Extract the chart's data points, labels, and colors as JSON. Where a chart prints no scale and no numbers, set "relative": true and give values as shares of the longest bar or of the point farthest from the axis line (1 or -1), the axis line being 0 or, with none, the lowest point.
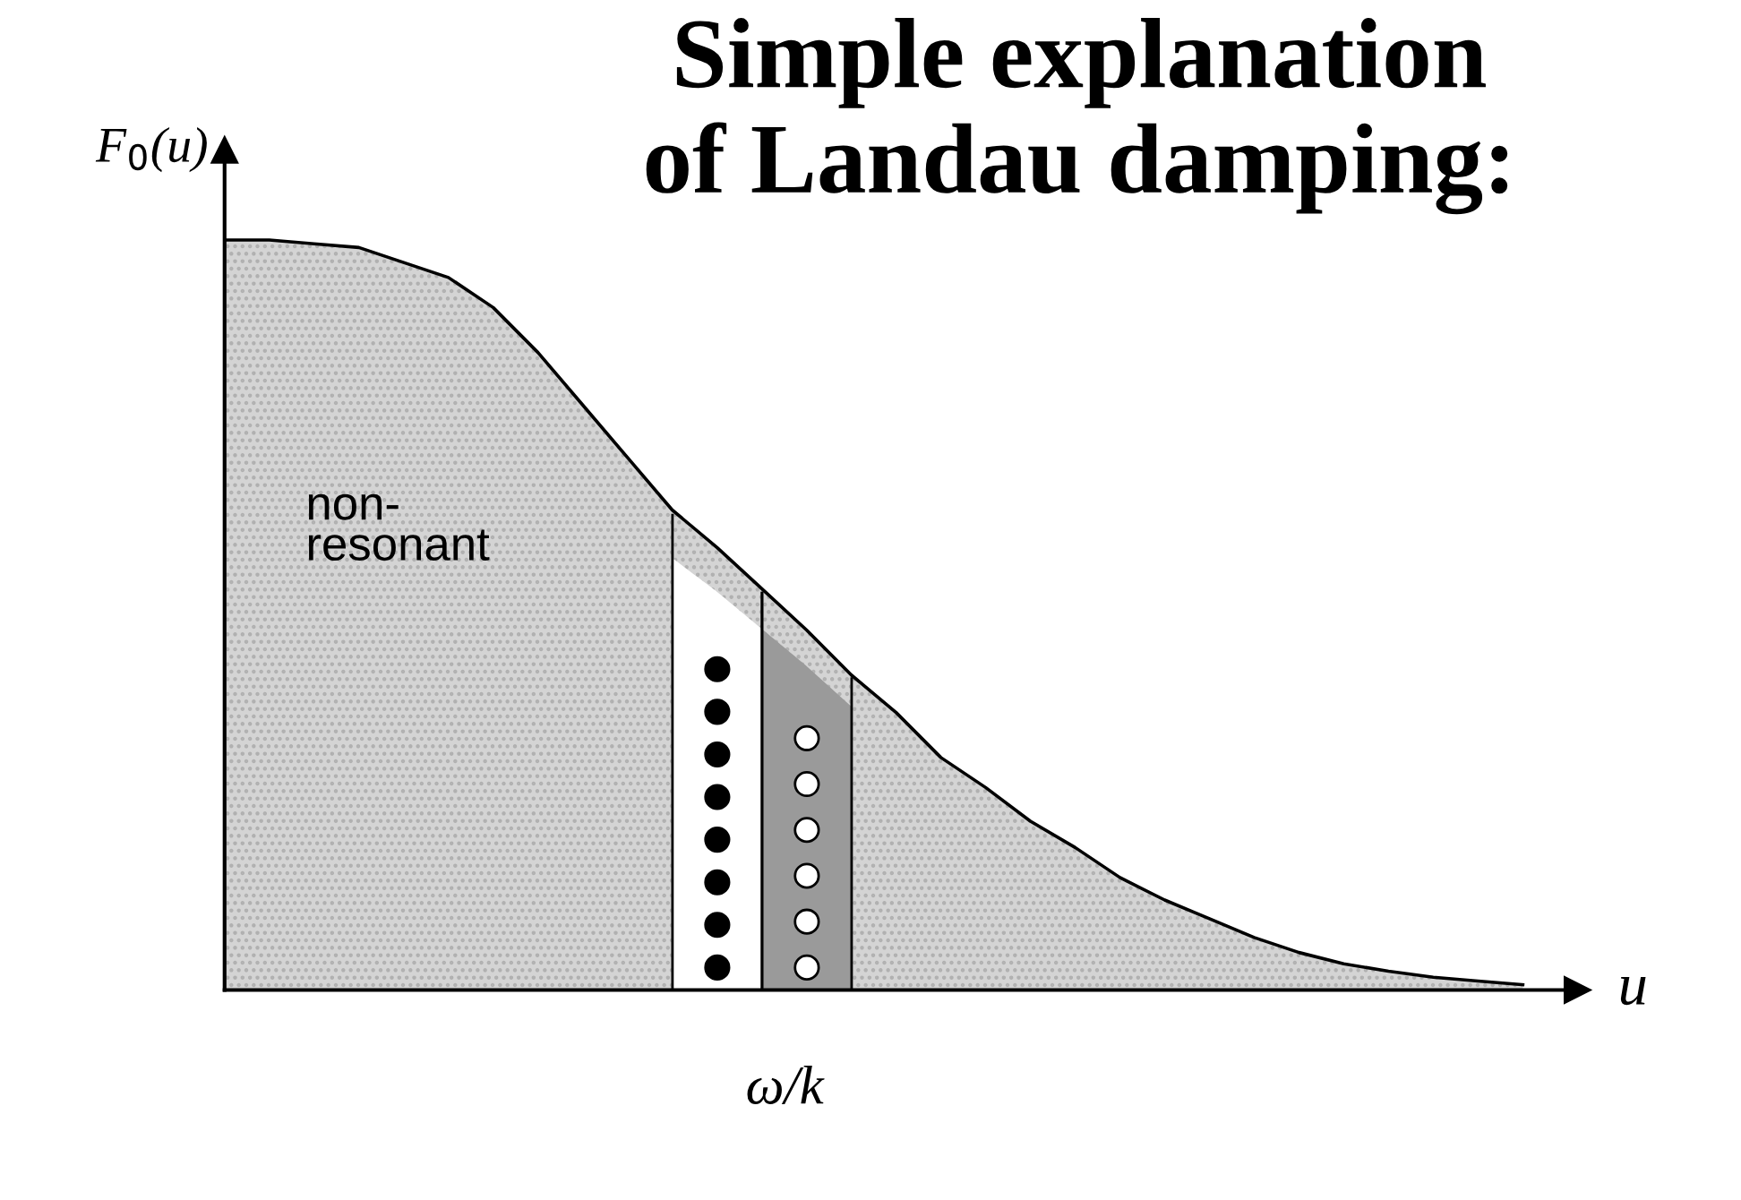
{
  "chart_data": {
    "type": "area",
    "title": "Simple explanation\nof Landau damping:",
    "xlabel": "u",
    "relative": true,
    "categories": [
      null,
      null,
      null,
      null,
      null,
      null,
      null,
      null,
      null,
      null,
      null,
      null,
      null,
      null,
      null,
      null,
      null,
      null,
      null,
      null,
      null,
      null,
      null,
      null,
      null,
      null,
      null,
      null,
      null,
      null
    ],
    "series": [
      {
        "color": "#d4d4d4",
        "values": [
          1.0,
          1.0,
          0.995,
          0.99,
          0.97,
          0.95,
          0.91,
          0.85,
          0.78,
          0.71,
          0.64,
          0.59,
          0.535,
          0.48,
          0.42,
          0.37,
          0.31,
          0.27,
          0.225,
          0.19,
          0.15,
          0.12,
          0.095,
          0.07,
          0.05,
          0.035,
          0.025,
          0.017,
          0.012,
          0.007
        ]
      }
    ],
    "annotations": [
      "non-\nresonant",
      "ω/k",
      "F$_{0}$(u)"
    ],
    "grid": false,
    "legend": false
  }
}
